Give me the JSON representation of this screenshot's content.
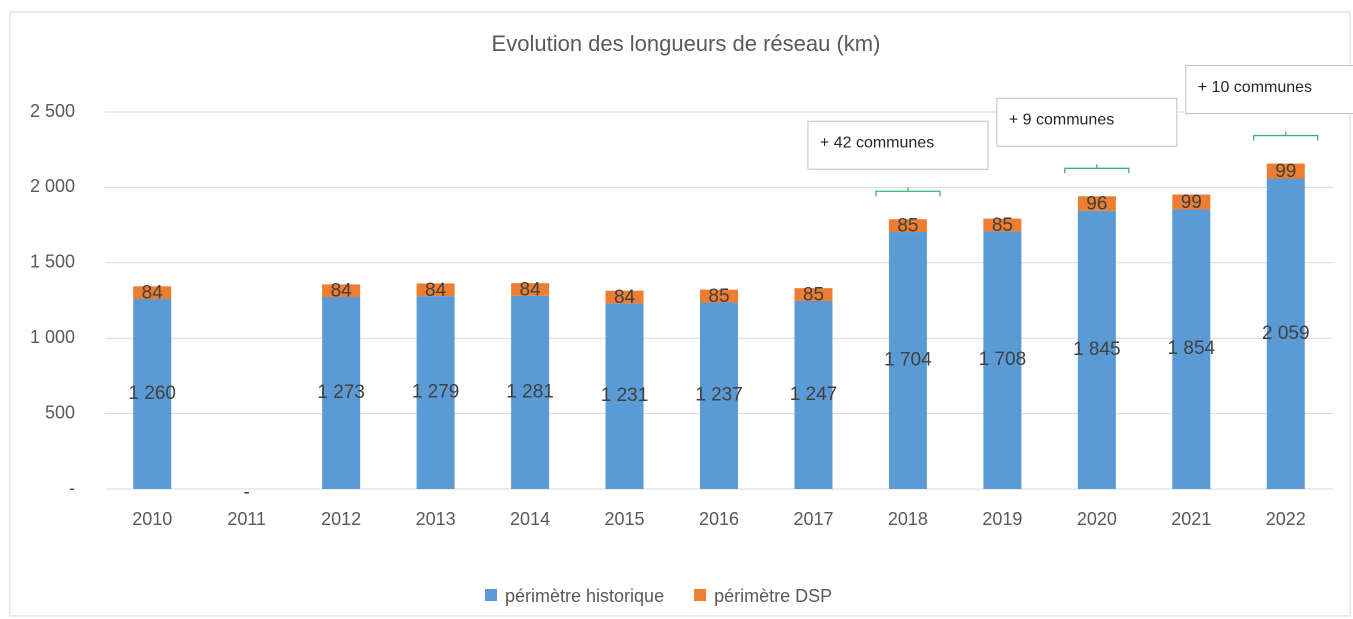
{
  "chart_data": {
    "type": "stacked_bar",
    "title": "Evolution des longueurs de réseau (km)",
    "categories": [
      "2010",
      "2011",
      "2012",
      "2013",
      "2014",
      "2015",
      "2016",
      "2017",
      "2018",
      "2019",
      "2020",
      "2021",
      "2022"
    ],
    "series": [
      {
        "name": "périmètre historique",
        "color": "#5b9bd5",
        "values": [
          1260,
          0,
          1273,
          1279,
          1281,
          1231,
          1237,
          1247,
          1704,
          1708,
          1845,
          1854,
          2059
        ],
        "value_labels": [
          "1 260",
          "-",
          "1 273",
          "1 279",
          "1 281",
          "1 231",
          "1 237",
          "1 247",
          "1 704",
          "1 708",
          "1 845",
          "1 854",
          "2 059"
        ]
      },
      {
        "name": "périmètre DSP",
        "color": "#ed7d31",
        "values": [
          84,
          null,
          84,
          84,
          84,
          84,
          85,
          85,
          85,
          85,
          96,
          99,
          99
        ]
      }
    ],
    "ylim": [
      0,
      2500
    ],
    "yticks": [
      {
        "value": 0,
        "label": "-"
      },
      500,
      {
        "value": 1000,
        "label": "1 000"
      },
      {
        "value": 1500,
        "label": "1 500"
      },
      {
        "value": 2000,
        "label": "2 000"
      },
      {
        "value": 2500,
        "label": "2 500"
      }
    ],
    "grid": true,
    "legend": "bottom",
    "annotations": [
      {
        "text": "+ 42 communes",
        "category": "2018"
      },
      {
        "text": "+ 9 communes",
        "category": "2020"
      },
      {
        "text": "+ 10 communes",
        "category": "2022"
      }
    ]
  }
}
